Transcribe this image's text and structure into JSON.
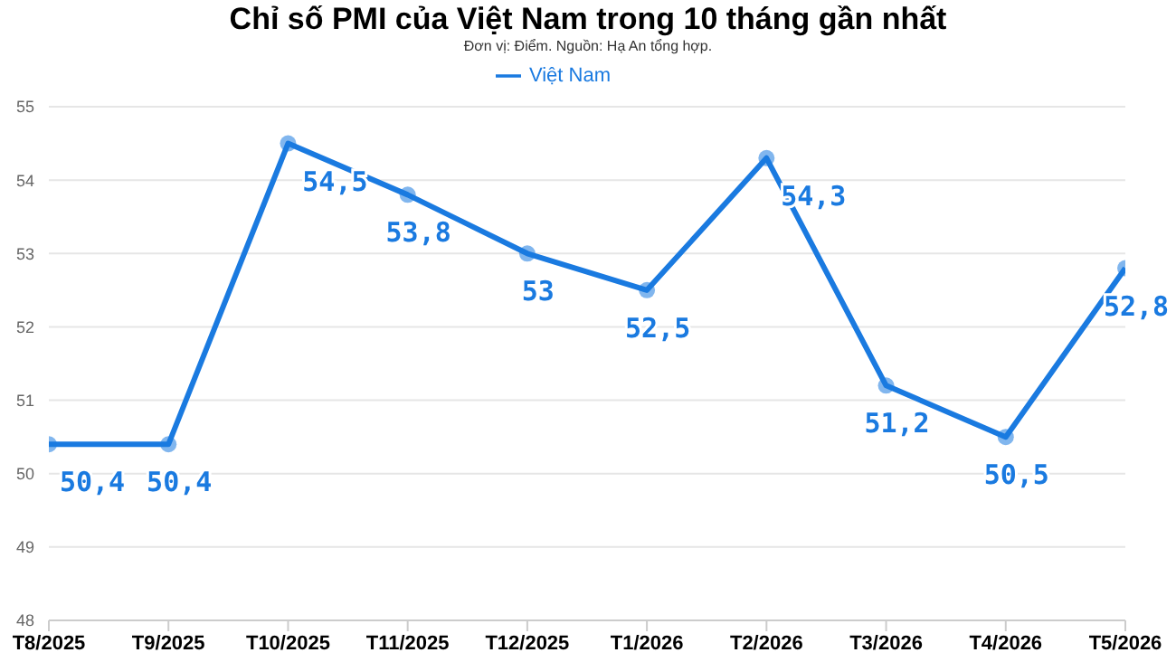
{
  "chart_data": {
    "type": "line",
    "title": "Chỉ số PMI của Việt Nam trong 10 tháng gần nhất",
    "subtitle": "Đơn vị: Điểm. Nguồn: Hạ An tổng hợp.",
    "categories": [
      "T8/2025",
      "T9/2025",
      "T10/2025",
      "T11/2025",
      "T12/2025",
      "T1/2026",
      "T2/2026",
      "T3/2026",
      "T4/2026",
      "T5/2026"
    ],
    "series": [
      {
        "name": "Việt Nam",
        "color": "#1a7ae0",
        "values": [
          50.4,
          50.4,
          54.5,
          53.8,
          53,
          52.5,
          54.3,
          51.2,
          50.5,
          52.8
        ],
        "value_labels": [
          "50,4",
          "50,4",
          "54,5",
          "53,8",
          "53",
          "52,5",
          "54,3",
          "51,2",
          "50,5",
          "52,8"
        ]
      }
    ],
    "ylim": [
      48,
      55
    ],
    "yticks": [
      48,
      49,
      50,
      51,
      52,
      53,
      54,
      55
    ],
    "grid": "y",
    "legend": "top",
    "marker": "circle",
    "line_style": "solid"
  }
}
